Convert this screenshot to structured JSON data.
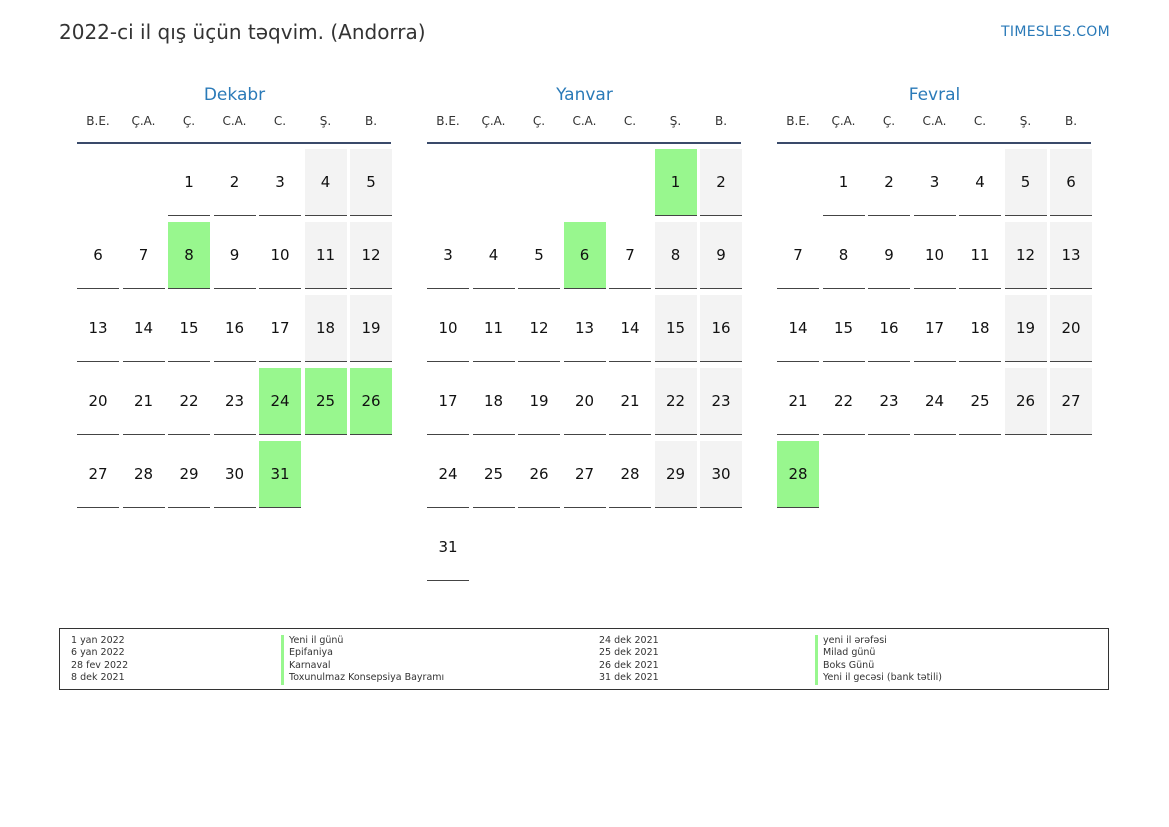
{
  "title": "2022-ci il qış üçün təqvim. (Andorra)",
  "brand": "TIMESLES.COM",
  "colors": {
    "accent": "#2a7ab8",
    "holiday": "#98f78e",
    "weekend": "#f3f3f3"
  },
  "weekdays": [
    "B.E.",
    "Ç.A.",
    "Ç.",
    "C.A.",
    "C.",
    "Ş.",
    "B."
  ],
  "months": [
    {
      "name": "Dekabr",
      "start": 2,
      "days": 31,
      "holidays": [
        8,
        24,
        25,
        26,
        31
      ]
    },
    {
      "name": "Yanvar",
      "start": 5,
      "days": 31,
      "holidays": [
        1,
        6
      ]
    },
    {
      "name": "Fevral",
      "start": 1,
      "days": 28,
      "holidays": [
        28
      ]
    }
  ],
  "legend": {
    "left": [
      {
        "date": "1 yan 2022",
        "name": "Yeni il günü"
      },
      {
        "date": "6 yan 2022",
        "name": "Epifaniya"
      },
      {
        "date": "28 fev 2022",
        "name": "Karnaval"
      },
      {
        "date": "8 dek 2021",
        "name": "Toxunulmaz Konsepsiya Bayramı"
      }
    ],
    "right": [
      {
        "date": "24 dek 2021",
        "name": "yeni il ərəfəsi"
      },
      {
        "date": "25 dek 2021",
        "name": "Milad günü"
      },
      {
        "date": "26 dek 2021",
        "name": "Boks Günü"
      },
      {
        "date": "31 dek 2021",
        "name": "Yeni il gecəsi (bank tətili)"
      }
    ]
  }
}
